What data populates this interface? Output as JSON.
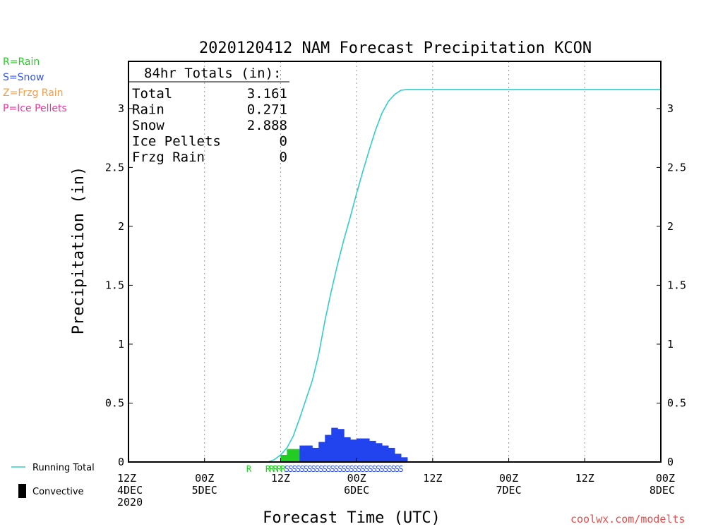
{
  "chart_data": {
    "type": "bar",
    "title": "2020120412 NAM Forecast Precipitation KCON",
    "xlabel": "Forecast Time (UTC)",
    "ylabel": "Precipitation (in)",
    "ylim": [
      0,
      3.4
    ],
    "yticks": [
      0,
      0.5,
      1,
      1.5,
      2,
      2.5,
      3
    ],
    "x_hours": [
      0,
      84
    ],
    "x_ticks": [
      {
        "hour": 0,
        "lines": [
          "12Z",
          "4DEC",
          "2020"
        ]
      },
      {
        "hour": 12,
        "lines": [
          "00Z",
          "5DEC"
        ]
      },
      {
        "hour": 24,
        "lines": [
          "12Z"
        ]
      },
      {
        "hour": 36,
        "lines": [
          "00Z",
          "6DEC"
        ]
      },
      {
        "hour": 48,
        "lines": [
          "12Z"
        ]
      },
      {
        "hour": 60,
        "lines": [
          "00Z",
          "7DEC"
        ]
      },
      {
        "hour": 72,
        "lines": [
          "12Z"
        ]
      },
      {
        "hour": 84,
        "lines": [
          "00Z",
          "8DEC"
        ]
      }
    ],
    "grid": true,
    "type_legend": [
      {
        "label": "R=Rain",
        "color": "#22cc22"
      },
      {
        "label": "S=Snow",
        "color": "#3355ee"
      },
      {
        "label": "Z=Frzg Rain",
        "color": "#f39c4b"
      },
      {
        "label": "P=Ice Pellets",
        "color": "#ee3399"
      }
    ],
    "series_legend": [
      {
        "label": "Running Total",
        "color": "#33cccc",
        "kind": "line"
      },
      {
        "label": "Convective",
        "color": "#000000",
        "kind": "bar"
      }
    ],
    "totals_box": {
      "header": "84hr Totals (in):",
      "rows": [
        {
          "label": "Total",
          "value": "3.161"
        },
        {
          "label": "Rain",
          "value": "0.271"
        },
        {
          "label": "Snow",
          "value": "2.888"
        },
        {
          "label": "Ice Pellets",
          "value": "0"
        },
        {
          "label": "Frzg Rain",
          "value": "0"
        }
      ]
    },
    "running_total": {
      "hours": [
        0,
        22,
        23,
        24,
        25,
        26,
        27,
        28,
        29,
        30,
        31,
        32,
        33,
        34,
        35,
        36,
        37,
        38,
        39,
        40,
        41,
        42,
        43,
        44,
        45,
        84
      ],
      "values": [
        0,
        0,
        0.02,
        0.06,
        0.12,
        0.22,
        0.37,
        0.53,
        0.69,
        0.91,
        1.2,
        1.45,
        1.68,
        1.89,
        2.08,
        2.28,
        2.47,
        2.65,
        2.82,
        2.96,
        3.06,
        3.12,
        3.155,
        3.161,
        3.161,
        3.161
      ]
    },
    "precip_bars": [
      {
        "hour": 24,
        "type": "R",
        "value": 0.06
      },
      {
        "hour": 25,
        "type": "R",
        "value": 0.11
      },
      {
        "hour": 26,
        "type": "R",
        "value": 0.11
      },
      {
        "hour": 27,
        "type": "S",
        "value": 0.14
      },
      {
        "hour": 28,
        "type": "S",
        "value": 0.14
      },
      {
        "hour": 29,
        "type": "S",
        "value": 0.12
      },
      {
        "hour": 30,
        "type": "S",
        "value": 0.17
      },
      {
        "hour": 31,
        "type": "S",
        "value": 0.23
      },
      {
        "hour": 32,
        "type": "S",
        "value": 0.29
      },
      {
        "hour": 33,
        "type": "S",
        "value": 0.28
      },
      {
        "hour": 34,
        "type": "S",
        "value": 0.21
      },
      {
        "hour": 35,
        "type": "S",
        "value": 0.19
      },
      {
        "hour": 36,
        "type": "S",
        "value": 0.2
      },
      {
        "hour": 37,
        "type": "S",
        "value": 0.2
      },
      {
        "hour": 38,
        "type": "S",
        "value": 0.18
      },
      {
        "hour": 39,
        "type": "S",
        "value": 0.16
      },
      {
        "hour": 40,
        "type": "S",
        "value": 0.14
      },
      {
        "hour": 41,
        "type": "S",
        "value": 0.12
      },
      {
        "hour": 42,
        "type": "S",
        "value": 0.07
      },
      {
        "hour": 43,
        "type": "S",
        "value": 0.04
      }
    ],
    "type_strip": [
      {
        "hour": 19,
        "symbol": "R"
      },
      {
        "hour": 22,
        "symbol": "R"
      },
      {
        "hour": 22.6,
        "symbol": "R"
      },
      {
        "hour": 23.2,
        "symbol": "R"
      },
      {
        "hour": 23.8,
        "symbol": "R"
      },
      {
        "hour": 24.4,
        "symbol": "R"
      },
      {
        "hour": 25,
        "symbol": "S"
      },
      {
        "hour": 25.6,
        "symbol": "S"
      },
      {
        "hour": 26.2,
        "symbol": "S"
      },
      {
        "hour": 26.8,
        "symbol": "S"
      },
      {
        "hour": 27.4,
        "symbol": "S"
      },
      {
        "hour": 28,
        "symbol": "S"
      },
      {
        "hour": 28.6,
        "symbol": "S"
      },
      {
        "hour": 29.2,
        "symbol": "S"
      },
      {
        "hour": 29.8,
        "symbol": "S"
      },
      {
        "hour": 30.4,
        "symbol": "S"
      },
      {
        "hour": 31,
        "symbol": "S"
      },
      {
        "hour": 31.6,
        "symbol": "S"
      },
      {
        "hour": 32.2,
        "symbol": "S"
      },
      {
        "hour": 32.8,
        "symbol": "S"
      },
      {
        "hour": 33.4,
        "symbol": "S"
      },
      {
        "hour": 34,
        "symbol": "S"
      },
      {
        "hour": 34.6,
        "symbol": "S"
      },
      {
        "hour": 35.2,
        "symbol": "S"
      },
      {
        "hour": 35.8,
        "symbol": "S"
      },
      {
        "hour": 36.4,
        "symbol": "S"
      },
      {
        "hour": 37,
        "symbol": "S"
      },
      {
        "hour": 37.6,
        "symbol": "S"
      },
      {
        "hour": 38.2,
        "symbol": "S"
      },
      {
        "hour": 38.8,
        "symbol": "S"
      },
      {
        "hour": 39.4,
        "symbol": "S"
      },
      {
        "hour": 40,
        "symbol": "S"
      },
      {
        "hour": 40.6,
        "symbol": "S"
      },
      {
        "hour": 41.2,
        "symbol": "S"
      },
      {
        "hour": 41.8,
        "symbol": "S"
      },
      {
        "hour": 42.4,
        "symbol": "S"
      },
      {
        "hour": 43,
        "symbol": "S"
      }
    ],
    "source": "coolwx.com/modelts",
    "colors": {
      "rain": "#22cc22",
      "snow": "#2244ee",
      "running_total": "#33cccc",
      "snow_strip": "#3355ee",
      "rain_strip": "#22cc22",
      "source": "#e84b4b"
    }
  }
}
